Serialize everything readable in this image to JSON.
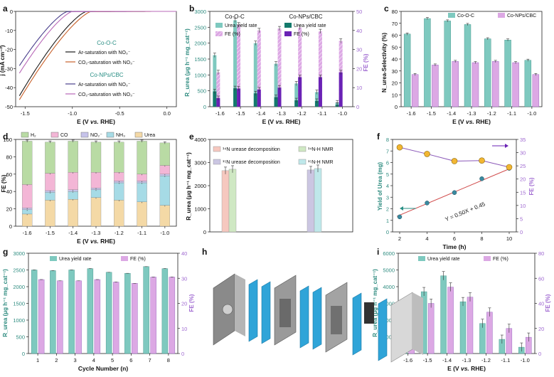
{
  "colors": {
    "teal": "#7ec9bf",
    "teal_dark": "#2f8c80",
    "teal_deep": "#137a6c",
    "pink": "#dca8e4",
    "purple": "#a06ad1",
    "purple_deep": "#6a22b5",
    "black": "#1a1a1a",
    "orange": "#c8602a",
    "navy": "#4a3f8c",
    "magenta": "#b868b8",
    "h2": "#b9dba4",
    "co": "#f3b6d6",
    "no2": "#c6c3ea",
    "nh3": "#a6dbe6",
    "urea": "#f4d9a6",
    "red_line": "#d04a4a",
    "gold": "#f2b632",
    "scatter": "#3a8aa0"
  },
  "chart_data": [
    {
      "panel": "a",
      "type": "line",
      "xlabel": "E (V vs. RHE)",
      "ylabel": "j (mA cm⁻²)",
      "xlim": [
        -1.6,
        0.1
      ],
      "ylim": [
        -50,
        0
      ],
      "xticks": [
        "-1.5",
        "-1.0",
        "-0.5",
        "0.0"
      ],
      "yticks": [
        "0",
        "-10",
        "-20",
        "-30",
        "-40",
        "-50"
      ],
      "legend_groups": [
        "Co-O-C",
        "Co-NPs/CBC"
      ],
      "series": [
        {
          "name": "Ar-saturation with NO₃⁻",
          "group": "Co-O-C",
          "onset": -0.85,
          "end": -46
        },
        {
          "name": "CO₂-saturation with NO₃⁻",
          "group": "Co-O-C",
          "onset": -0.8,
          "end": -48
        },
        {
          "name": "Ar-saturation with NO₃⁻",
          "group": "Co-NPs/CBC",
          "onset": -1.05,
          "end": -30
        },
        {
          "name": "CO₂-saturation with NO₃⁻",
          "group": "Co-NPs/CBC",
          "onset": -1.0,
          "end": -34
        }
      ]
    },
    {
      "panel": "b",
      "type": "bar",
      "xlabel": "E (V vs. RHE)",
      "ylabel": "R_urea (μg h⁻¹ mg_cat⁻¹)",
      "y2label": "FE (%)",
      "categories": [
        "-1.6",
        "-1.5",
        "-1.4",
        "-1.3",
        "-1.2",
        "-1.1",
        "-1.0"
      ],
      "ylim": [
        0,
        3000
      ],
      "y2lim": [
        0,
        50
      ],
      "yticks": [
        "0",
        "500",
        "1000",
        "1500",
        "2000",
        "2500",
        "3000"
      ],
      "y2ticks": [
        "0",
        "10",
        "20",
        "30",
        "40",
        "50"
      ],
      "legend_groups": [
        "Co-O-C",
        "Co-NPs/CBC"
      ],
      "legend": [
        "Urea yield rate",
        "FE (%)",
        "Urea yield rate",
        "FE (%)"
      ],
      "series": [
        {
          "name": "Co-O-C Urea yield rate",
          "axis": "y",
          "values": [
            1620,
            2720,
            2000,
            1350,
            730,
            460,
            130
          ]
        },
        {
          "name": "Co-O-C FE (%)",
          "axis": "y2",
          "values": [
            18,
            43,
            40,
            41,
            41.5,
            39.5,
            34.5
          ]
        },
        {
          "name": "Co-NPs/CBC Urea yield rate",
          "axis": "y",
          "values": [
            480,
            580,
            420,
            300,
            200,
            180,
            60
          ]
        },
        {
          "name": "Co-NPs/CBC FE (%)",
          "axis": "y2",
          "values": [
            4.5,
            9.5,
            9,
            10,
            15.5,
            15.5,
            18
          ]
        }
      ]
    },
    {
      "panel": "c",
      "type": "bar",
      "xlabel": "E (V vs. RHE)",
      "ylabel": "N_urea-Selectivity (%)",
      "categories": [
        "-1.6",
        "-1.5",
        "-1.4",
        "-1.3",
        "-1.2",
        "-1.1",
        "-1.0"
      ],
      "ylim": [
        0,
        80
      ],
      "yticks": [
        "0",
        "10",
        "20",
        "30",
        "40",
        "50",
        "60",
        "70",
        "80"
      ],
      "series": [
        {
          "name": "Co-O-C",
          "values": [
            61,
            74,
            72,
            69,
            57,
            56,
            39
          ]
        },
        {
          "name": "Co-NPs/CBC",
          "values": [
            27,
            35,
            38,
            37,
            38,
            37,
            27
          ]
        }
      ]
    },
    {
      "panel": "d",
      "type": "bar",
      "xlabel": "E (V vs. RHE)",
      "ylabel": "FE (%)",
      "categories": [
        "-1.6",
        "-1.5",
        "-1.4",
        "-1.3",
        "-1.2",
        "-1.1",
        "-1.0"
      ],
      "ylim": [
        0,
        100
      ],
      "yticks": [
        "0",
        "20",
        "40",
        "60",
        "80",
        "100"
      ],
      "stacked": true,
      "series": [
        {
          "name": "Urea",
          "values": [
            14,
            30,
            31,
            33,
            30,
            28,
            24
          ]
        },
        {
          "name": "NH₃",
          "values": [
            5,
            9,
            9,
            9,
            20,
            22,
            34
          ]
        },
        {
          "name": "NO₂⁻",
          "values": [
            2,
            2,
            2,
            2,
            2,
            2,
            2
          ]
        },
        {
          "name": "CO",
          "values": [
            27,
            20,
            20,
            18,
            10,
            8,
            10
          ]
        },
        {
          "name": "H₂",
          "values": [
            50,
            36,
            36,
            35,
            35,
            38,
            26
          ]
        }
      ],
      "legend": [
        "H₂",
        "CO",
        "NO₂⁻",
        "NH₃",
        "Urea"
      ]
    },
    {
      "panel": "e",
      "type": "bar",
      "ylabel": "R_urea (μg h⁻¹ mg_cat⁻¹)",
      "ylim": [
        0,
        4000
      ],
      "yticks": [
        "0",
        "1000",
        "2000",
        "3000",
        "4000"
      ],
      "legend": [
        "¹⁴N urease decomposition",
        "¹⁴N-H NMR",
        "¹⁵N urease decomposition",
        "¹⁵N-H NMR"
      ],
      "series": [
        {
          "name": "¹⁴N urease decomposition",
          "values": [
            2650
          ]
        },
        {
          "name": "¹⁴N-H NMR",
          "values": [
            2710
          ]
        },
        {
          "name": "¹⁵N urease decomposition",
          "values": [
            2680
          ]
        },
        {
          "name": "¹⁵N-H NMR",
          "values": [
            2740
          ]
        }
      ]
    },
    {
      "panel": "f",
      "type": "scatter",
      "xlabel": "Time (h)",
      "ylabel": "Yield of Urea (mg)",
      "y2label": "FE (%)",
      "xlim": [
        2,
        10
      ],
      "ylim": [
        0,
        8
      ],
      "y2lim": [
        0,
        35
      ],
      "xticks": [
        "2",
        "4",
        "6",
        "8",
        "10"
      ],
      "yticks": [
        "0",
        "1",
        "2",
        "3",
        "4",
        "5",
        "6",
        "7",
        "8"
      ],
      "y2ticks": [
        "0",
        "5",
        "10",
        "15",
        "20",
        "25",
        "30",
        "35"
      ],
      "annotation": "Y = 0.50X + 0.45",
      "series": [
        {
          "name": "Yield",
          "x": [
            2,
            4,
            6,
            8,
            10
          ],
          "y": [
            1.3,
            2.5,
            3.4,
            4.6,
            5.5
          ]
        },
        {
          "name": "FE",
          "x": [
            2,
            4,
            6,
            8,
            10
          ],
          "y": [
            32,
            29.5,
            26.8,
            27,
            24.5
          ]
        }
      ]
    },
    {
      "panel": "g",
      "type": "bar",
      "xlabel": "Cycle Number (n)",
      "ylabel": "R_urea (μg h⁻¹ mg_cat⁻¹)",
      "y2label": "FE (%)",
      "categories": [
        "1",
        "2",
        "3",
        "4",
        "5",
        "6",
        "7",
        "8"
      ],
      "ylim": [
        0,
        3000
      ],
      "y2lim": [
        0,
        40
      ],
      "yticks": [
        "0",
        "500",
        "1000",
        "1500",
        "2000",
        "2500",
        "3000"
      ],
      "y2ticks": [
        "0",
        "10",
        "20",
        "30",
        "40"
      ],
      "legend": [
        "Urea yield rate",
        "FE (%)"
      ],
      "series": [
        {
          "name": "Urea yield rate",
          "axis": "y",
          "values": [
            2500,
            2480,
            2500,
            2540,
            2430,
            2400,
            2600,
            2540
          ]
        },
        {
          "name": "FE (%)",
          "axis": "y2",
          "values": [
            29.5,
            29,
            29,
            29.5,
            28.5,
            28,
            30.5,
            30.5
          ]
        }
      ]
    },
    {
      "panel": "i",
      "type": "bar",
      "xlabel": "E (V vs. RHE)",
      "ylabel": "R_urea (μg h⁻¹ mg_cat⁻¹)",
      "y2label": "FE (%)",
      "categories": [
        "-1.6",
        "-1.5",
        "-1.4",
        "-1.3",
        "-1.2",
        "-1.1",
        "-1.0"
      ],
      "ylim": [
        0,
        6000
      ],
      "y2lim": [
        0,
        80
      ],
      "yticks": [
        "0",
        "1000",
        "2000",
        "3000",
        "4000",
        "5000",
        "6000"
      ],
      "y2ticks": [
        "0",
        "20",
        "40",
        "60",
        "80"
      ],
      "legend": [
        "Urea yield rate",
        "FE (%)"
      ],
      "series": [
        {
          "name": "Urea yield rate",
          "axis": "y",
          "values": [
            2850,
            3700,
            4650,
            3100,
            1800,
            850,
            380
          ]
        },
        {
          "name": "FE (%)",
          "axis": "y2",
          "values": [
            22,
            40,
            53,
            45,
            33,
            20,
            13
          ]
        }
      ]
    }
  ],
  "panel_labels": [
    "a",
    "b",
    "c",
    "d",
    "e",
    "f",
    "g",
    "h",
    "i"
  ],
  "axis_italic": {
    "vs": "vs."
  }
}
